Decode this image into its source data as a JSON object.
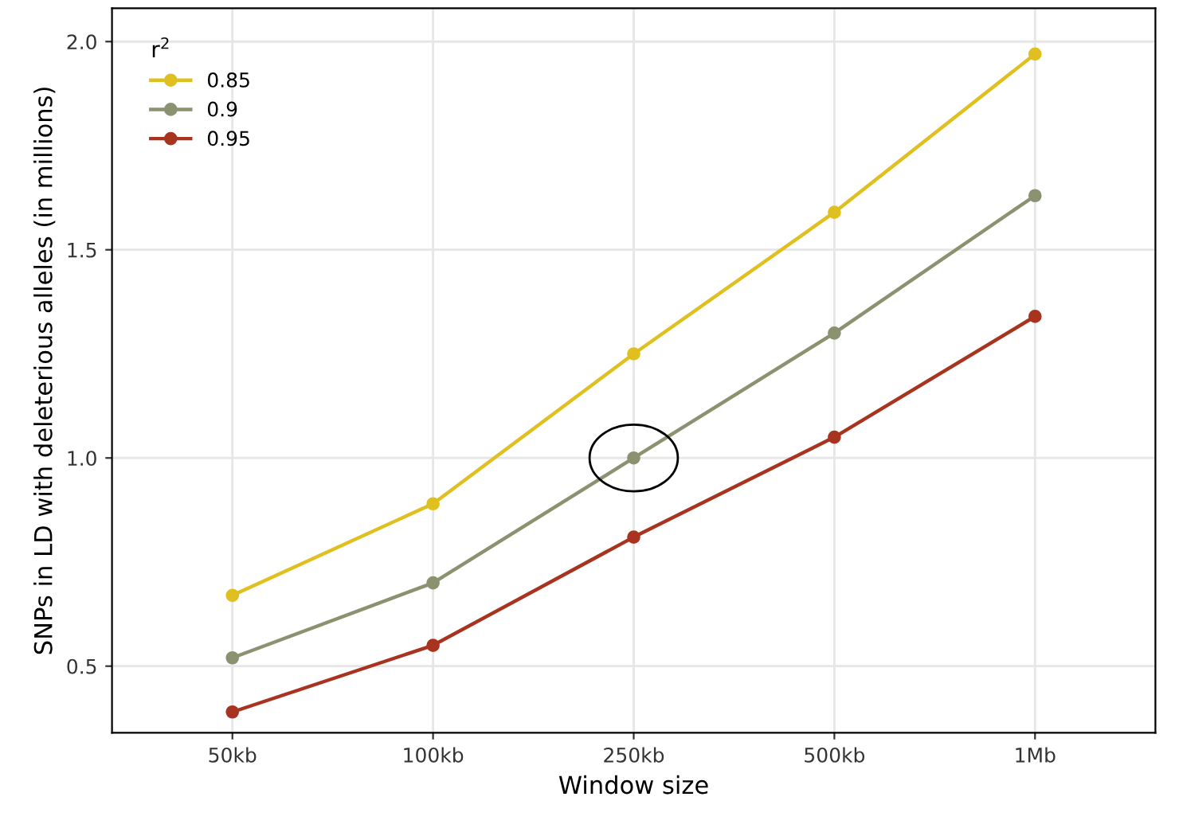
{
  "chart_data": {
    "type": "line",
    "xlabel": "Window size",
    "ylabel": "SNPs in LD with deleterious alleles (in millions)",
    "legend_title": "r$^{2}$",
    "categories": [
      "50kb",
      "100kb",
      "250kb",
      "500kb",
      "1Mb"
    ],
    "series": [
      {
        "name": "0.85",
        "color": "#e0c020",
        "values": [
          0.67,
          0.89,
          1.25,
          1.59,
          1.97
        ]
      },
      {
        "name": "0.9",
        "color": "#8a9270",
        "values": [
          0.52,
          0.7,
          1.0,
          1.3,
          1.63
        ]
      },
      {
        "name": "0.95",
        "color": "#a83420",
        "values": [
          0.39,
          0.55,
          0.81,
          1.05,
          1.34
        ]
      }
    ],
    "ylim": [
      0.34,
      2.08
    ],
    "yticks": [
      {
        "value": 0.5,
        "label": "0.5"
      },
      {
        "value": 1.0,
        "label": "1.0"
      },
      {
        "value": 1.5,
        "label": "1.5"
      },
      {
        "value": 2.0,
        "label": "2.0"
      }
    ],
    "grid": true,
    "legend": "top left",
    "marker": "circle",
    "line_style": "solid"
  }
}
